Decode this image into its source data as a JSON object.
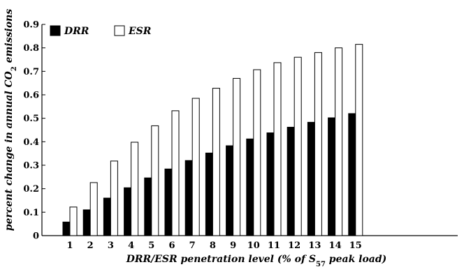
{
  "chart_data": {
    "type": "bar",
    "categories": [
      "1",
      "2",
      "3",
      "4",
      "5",
      "6",
      "7",
      "8",
      "9",
      "10",
      "11",
      "12",
      "13",
      "14",
      "15"
    ],
    "series": [
      {
        "name": "DRR",
        "fill": "#000000",
        "values": [
          0.058,
          0.11,
          0.16,
          0.204,
          0.246,
          0.284,
          0.32,
          0.352,
          0.383,
          0.412,
          0.438,
          0.462,
          0.483,
          0.502,
          0.52
        ]
      },
      {
        "name": "ESR",
        "fill": "#ffffff",
        "values": [
          0.122,
          0.226,
          0.318,
          0.398,
          0.468,
          0.532,
          0.585,
          0.628,
          0.67,
          0.707,
          0.737,
          0.76,
          0.78,
          0.8,
          0.815
        ]
      }
    ],
    "ylim": [
      0,
      0.9
    ],
    "yticks": [
      "0",
      "0.1",
      "0.2",
      "0.3",
      "0.4",
      "0.5",
      "0.6",
      "0.7",
      "0.8",
      "0.9"
    ],
    "xlabel": "DRR/ESR penetration level (% of S57 peak load)",
    "xlabel_parts": {
      "before": "DRR/ESR penetration level (% of ",
      "sym": "S",
      "sub": "57",
      "after": " peak load)"
    },
    "ylabel": "percent change in annual CO2 emissions",
    "ylabel_parts": {
      "before": "percent change in annual ",
      "sym": "CO",
      "sub": "2",
      "after": " emissions"
    },
    "legend": "top-left",
    "grid": false
  }
}
